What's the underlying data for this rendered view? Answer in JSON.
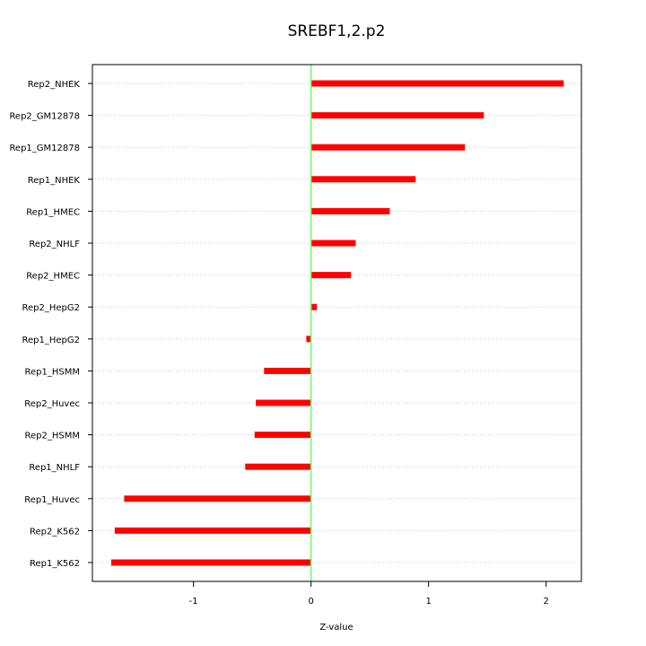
{
  "chart_data": {
    "type": "bar",
    "orientation": "horizontal",
    "title": "SREBF1,2.p2",
    "xlabel": "Z-value",
    "ylabel": "",
    "categories": [
      "Rep2_NHEK",
      "Rep2_GM12878",
      "Rep1_GM12878",
      "Rep1_NHEK",
      "Rep1_HMEC",
      "Rep2_NHLF",
      "Rep2_HMEC",
      "Rep2_HepG2",
      "Rep1_HepG2",
      "Rep1_HSMM",
      "Rep2_Huvec",
      "Rep2_HSMM",
      "Rep1_NHLF",
      "Rep1_Huvec",
      "Rep2_K562",
      "Rep1_K562"
    ],
    "values": [
      2.15,
      1.47,
      1.31,
      0.89,
      0.67,
      0.38,
      0.34,
      0.05,
      -0.04,
      -0.4,
      -0.47,
      -0.48,
      -0.56,
      -1.59,
      -1.67,
      -1.7
    ],
    "xlim": [
      -1.86,
      2.3
    ],
    "xticks": [
      -1,
      0,
      1,
      2
    ],
    "xtick_labels": [
      "-1",
      "0",
      "1",
      "2"
    ],
    "grid": "horizontal dotted",
    "bar_color": "#ff0000",
    "zero_line_color": "#66ff66"
  }
}
